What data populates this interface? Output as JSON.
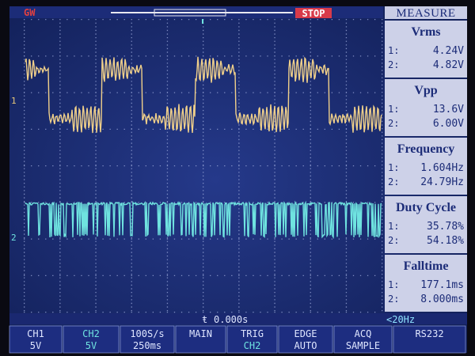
{
  "header": {
    "brand": "GW",
    "status": "STOP",
    "panel_title": "MEASURE"
  },
  "channel_markers": [
    "1",
    "2"
  ],
  "measurements": [
    {
      "name": "Vrms",
      "rows": [
        {
          "label": "1:",
          "value": "4.24V"
        },
        {
          "label": "2:",
          "value": "4.82V"
        }
      ]
    },
    {
      "name": "Vpp",
      "rows": [
        {
          "label": "1:",
          "value": "13.6V"
        },
        {
          "label": "2:",
          "value": "6.00V"
        }
      ]
    },
    {
      "name": "Frequency",
      "rows": [
        {
          "label": "1:",
          "value": "1.604Hz"
        },
        {
          "label": "2:",
          "value": "24.79Hz"
        }
      ]
    },
    {
      "name": "Duty Cycle",
      "rows": [
        {
          "label": "1:",
          "value": "35.78%"
        },
        {
          "label": "2:",
          "value": "54.18%"
        }
      ]
    },
    {
      "name": "Falltime",
      "rows": [
        {
          "label": "1:",
          "value": "177.1ms"
        },
        {
          "label": "2:",
          "value": "8.000ms"
        }
      ]
    }
  ],
  "status_line": {
    "time_offset": "0.000s",
    "trigger_note": "<20Hz"
  },
  "bottom_bar": [
    {
      "top": "CH1",
      "bottom": "5V"
    },
    {
      "top": "CH2",
      "bottom": "5V"
    },
    {
      "top": "100S/s",
      "bottom": "250ms"
    },
    {
      "top": "MAIN"
    },
    {
      "top": "TRIG",
      "bottom": "CH2"
    },
    {
      "top": "EDGE",
      "bottom": "AUTO"
    },
    {
      "top": "ACQ",
      "bottom": "SAMPLE"
    },
    {
      "top": "RS232"
    }
  ]
}
